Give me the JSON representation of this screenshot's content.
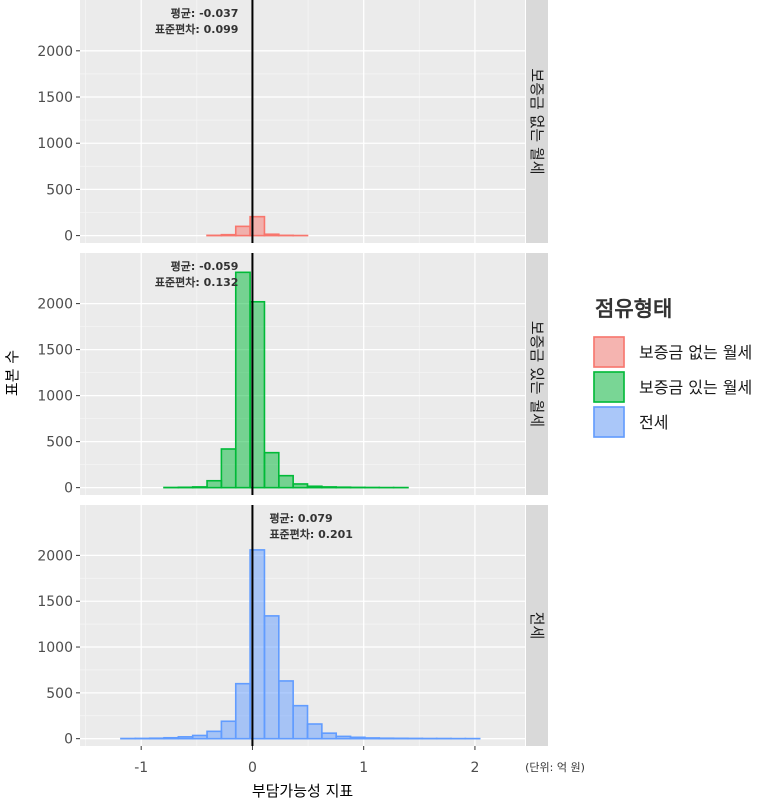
{
  "chart_data": {
    "type": "bar",
    "subtype": "faceted-histogram",
    "xlabel": "부담가능성 지표",
    "ylabel": "표본 수",
    "unit_note": "(단위: 억 원)",
    "xlim": [
      -1.55,
      2.45
    ],
    "x_ticks": [
      -1,
      0,
      1,
      2
    ],
    "ylim": [
      -80,
      2550
    ],
    "y_ticks": [
      0,
      500,
      1000,
      1500,
      2000
    ],
    "bin_width": 0.129,
    "bin_start": -1.44,
    "reference_line_x": 0,
    "grid": true,
    "legend": {
      "title": "점유형태",
      "position": "right",
      "entries": [
        {
          "label": "보증금 없는 월세",
          "fill": "#F8766D",
          "line": "#F8766D"
        },
        {
          "label": "보증금 있는 월세",
          "fill": "#00BA38",
          "line": "#00BA38"
        },
        {
          "label": "전세",
          "fill": "#619CFF",
          "line": "#619CFF"
        }
      ]
    },
    "series": [
      {
        "name": "보증금 없는 월세",
        "strip_label": "보증금 없는 월세",
        "fill": "#F8766D",
        "annot_lines": [
          "평균: -0.037",
          "표준편차: 0.099"
        ],
        "values": [
          0,
          0,
          0,
          0,
          0,
          0,
          0,
          0,
          3,
          10,
          100,
          205,
          15,
          3,
          1,
          0,
          0,
          0,
          0,
          0,
          0,
          0,
          0,
          0,
          0,
          0,
          0,
          0,
          0,
          0,
          0,
          0
        ]
      },
      {
        "name": "보증금 있는 월세",
        "strip_label": "보증금 있는 월세",
        "fill": "#00BA38",
        "annot_lines": [
          "평균: -0.059",
          "표준편차: 0.132"
        ],
        "values": [
          0,
          0,
          0,
          0,
          0,
          2,
          4,
          8,
          75,
          420,
          2340,
          2020,
          380,
          130,
          40,
          15,
          8,
          5,
          3,
          2,
          1,
          1,
          0,
          0,
          0,
          0,
          0,
          0,
          0,
          0,
          0,
          0
        ]
      },
      {
        "name": "전세",
        "strip_label": "전세",
        "fill": "#619CFF",
        "annot_lines": [
          "평균: 0.079",
          "표준편차: 0.201"
        ],
        "values": [
          0,
          0,
          2,
          3,
          5,
          10,
          20,
          35,
          80,
          190,
          600,
          2060,
          1340,
          630,
          360,
          160,
          60,
          25,
          15,
          8,
          5,
          4,
          3,
          2,
          2,
          1,
          1,
          0,
          0,
          0,
          0,
          0
        ]
      }
    ]
  }
}
